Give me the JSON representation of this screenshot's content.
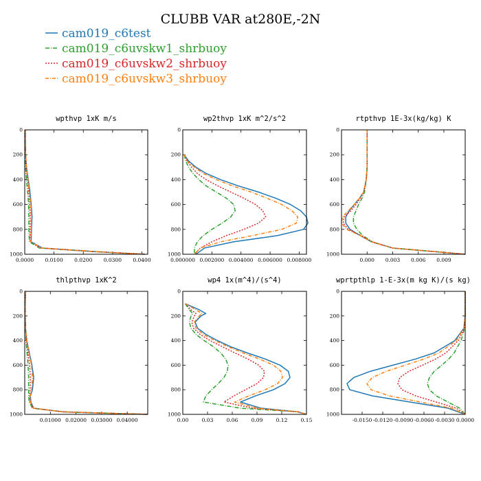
{
  "figure": {
    "title": "CLUBB VAR at280E,-2N",
    "legend": [
      {
        "label": "cam019_c6test",
        "color": "#1f77b4"
      },
      {
        "label": "cam019_c6uvskw1_shrbuoy",
        "color": "#2ca02c"
      },
      {
        "label": "cam019_c6uvskw2_shrbuoy",
        "color": "#d62728"
      },
      {
        "label": "cam019_c6uvskw3_shrbuoy",
        "color": "#ff7f0e"
      }
    ]
  },
  "chart_data": [
    {
      "type": "line",
      "title": "wpthvp  1xK m/s",
      "xlim": [
        0,
        0.042
      ],
      "ylim": [
        1000,
        0
      ],
      "xticks": [
        0,
        0.01,
        0.02,
        0.03,
        0.04
      ],
      "xtick_labels": [
        "0.0000",
        "0.0100",
        "0.0200",
        "0.0300",
        "0.0400"
      ],
      "yticks": [
        0,
        200,
        400,
        600,
        800,
        1000
      ],
      "ytick_labels": [
        "0",
        "200",
        "400",
        "600",
        "800",
        "1000"
      ],
      "y": [
        0,
        100,
        200,
        300,
        400,
        500,
        600,
        700,
        800,
        900,
        950,
        980,
        1000
      ],
      "series": [
        {
          "name": "cam019_c6test",
          "x": [
            0.0002,
            0.0002,
            0.0003,
            0.0006,
            0.0012,
            0.0018,
            0.0022,
            0.0025,
            0.0023,
            0.0022,
            0.006,
            0.025,
            0.041
          ]
        },
        {
          "name": "cam019_c6uvskw1_shrbuoy",
          "x": [
            0.0002,
            0.0002,
            0.0002,
            0.0003,
            0.0006,
            0.001,
            0.0013,
            0.0014,
            0.0014,
            0.0016,
            0.005,
            0.024,
            0.041
          ]
        },
        {
          "name": "cam019_c6uvskw2_shrbuoy",
          "x": [
            0.0002,
            0.0002,
            0.0003,
            0.0005,
            0.001,
            0.0014,
            0.0017,
            0.0019,
            0.0018,
            0.0019,
            0.0055,
            0.0245,
            0.041
          ]
        },
        {
          "name": "cam019_c6uvskw3_shrbuoy",
          "x": [
            0.0002,
            0.0002,
            0.0003,
            0.0006,
            0.0011,
            0.0016,
            0.0021,
            0.0023,
            0.0022,
            0.0021,
            0.0058,
            0.025,
            0.041
          ]
        }
      ]
    },
    {
      "type": "line",
      "title": "wp2thvp  1xK m^2/s^2",
      "xlim": [
        0,
        0.0085
      ],
      "ylim": [
        1000,
        0
      ],
      "xticks": [
        0,
        0.002,
        0.004,
        0.006,
        0.008
      ],
      "xtick_labels": [
        "0.000000",
        "0.002000",
        "0.004000",
        "0.006000",
        "0.008000"
      ],
      "yticks": [
        0,
        200,
        400,
        600,
        800,
        1000
      ],
      "ytick_labels": [
        "0",
        "200",
        "400",
        "600",
        "800",
        "1000"
      ],
      "y": [
        200,
        250,
        300,
        350,
        400,
        450,
        500,
        550,
        600,
        650,
        700,
        750,
        800,
        850,
        900,
        950,
        1000
      ],
      "series": [
        {
          "name": "cam019_c6test",
          "x": [
            0.0001,
            0.0004,
            0.0009,
            0.0016,
            0.0026,
            0.0038,
            0.0052,
            0.0064,
            0.0074,
            0.0081,
            0.0085,
            0.0086,
            0.0083,
            0.0065,
            0.0035,
            0.0015,
            0.0009
          ]
        },
        {
          "name": "cam019_c6uvskw1_shrbuoy",
          "x": [
            0.0001,
            0.0002,
            0.0004,
            0.0007,
            0.0011,
            0.0016,
            0.0023,
            0.003,
            0.0035,
            0.0036,
            0.0033,
            0.0027,
            0.002,
            0.0014,
            0.001,
            0.0008,
            0.0008
          ]
        },
        {
          "name": "cam019_c6uvskw2_shrbuoy",
          "x": [
            0.0001,
            0.0003,
            0.0006,
            0.001,
            0.0016,
            0.0024,
            0.0033,
            0.0042,
            0.005,
            0.0055,
            0.0057,
            0.0052,
            0.0042,
            0.003,
            0.002,
            0.0012,
            0.0008
          ]
        },
        {
          "name": "cam019_c6uvskw3_shrbuoy",
          "x": [
            0.0001,
            0.0003,
            0.0008,
            0.0014,
            0.0023,
            0.0034,
            0.0047,
            0.0058,
            0.0068,
            0.0075,
            0.0079,
            0.0078,
            0.0068,
            0.0048,
            0.0026,
            0.0012,
            0.0008
          ]
        }
      ]
    },
    {
      "type": "line",
      "title": "rtpthvp  1E-3x(kg/kg) K",
      "xlim": [
        -0.003,
        0.0115
      ],
      "ylim": [
        1000,
        0
      ],
      "xticks": [
        0,
        0.003,
        0.006,
        0.009
      ],
      "xtick_labels": [
        "0.000",
        "0.003",
        "0.006",
        "0.009"
      ],
      "yticks": [
        0,
        200,
        400,
        600,
        800,
        1000
      ],
      "ytick_labels": [
        "0",
        "200",
        "400",
        "600",
        "800",
        "1000"
      ],
      "y": [
        0,
        200,
        300,
        400,
        500,
        550,
        600,
        650,
        700,
        750,
        800,
        850,
        900,
        950,
        1000
      ],
      "series": [
        {
          "name": "cam019_c6test",
          "x": [
            0,
            0,
            0,
            -0.0001,
            -0.0004,
            -0.0009,
            -0.0015,
            -0.0021,
            -0.0025,
            -0.0025,
            -0.002,
            -0.0008,
            0.0005,
            0.003,
            0.0115
          ]
        },
        {
          "name": "cam019_c6uvskw1_shrbuoy",
          "x": [
            0,
            0,
            0,
            -0.0001,
            -0.0003,
            -0.0006,
            -0.001,
            -0.0013,
            -0.0016,
            -0.0016,
            -0.0012,
            -0.0005,
            0.0006,
            0.003,
            0.0115
          ]
        },
        {
          "name": "cam019_c6uvskw2_shrbuoy",
          "x": [
            0,
            0,
            0,
            -0.0001,
            -0.0004,
            -0.0008,
            -0.0013,
            -0.0019,
            -0.0027,
            -0.0028,
            -0.0022,
            -0.0007,
            0.0006,
            0.003,
            0.0115
          ]
        },
        {
          "name": "cam019_c6uvskw3_shrbuoy",
          "x": [
            0,
            0,
            0,
            -0.0001,
            -0.0004,
            -0.0009,
            -0.0015,
            -0.0022,
            -0.0029,
            -0.003,
            -0.0024,
            -0.0008,
            0.0005,
            0.003,
            0.0115
          ]
        }
      ]
    },
    {
      "type": "line",
      "title": "thlpthvp  1xK^2",
      "xlim": [
        0,
        0.048
      ],
      "ylim": [
        1000,
        0
      ],
      "xticks": [
        0.01,
        0.02,
        0.03,
        0.04
      ],
      "xtick_labels": [
        "0.01000",
        "0.02000",
        "0.03000",
        "0.04000"
      ],
      "yticks": [
        0,
        200,
        400,
        600,
        800,
        1000
      ],
      "ytick_labels": [
        "0",
        "200",
        "400",
        "600",
        "800",
        "1000"
      ],
      "y": [
        0,
        100,
        200,
        300,
        400,
        500,
        600,
        700,
        800,
        850,
        900,
        950,
        980,
        1000
      ],
      "series": [
        {
          "name": "cam019_c6test",
          "x": [
            0.0003,
            0.0002,
            0.0002,
            0.0003,
            0.0008,
            0.0018,
            0.0028,
            0.0035,
            0.003,
            0.0022,
            0.0024,
            0.0035,
            0.015,
            0.048
          ]
        },
        {
          "name": "cam019_c6uvskw1_shrbuoy",
          "x": [
            0.0003,
            0.0002,
            0.0002,
            0.0003,
            0.0005,
            0.0009,
            0.0013,
            0.0015,
            0.0015,
            0.0015,
            0.0018,
            0.003,
            0.015,
            0.048
          ]
        },
        {
          "name": "cam019_c6uvskw2_shrbuoy",
          "x": [
            0.0003,
            0.0002,
            0.0002,
            0.0003,
            0.0007,
            0.0013,
            0.0019,
            0.0022,
            0.0021,
            0.0019,
            0.0021,
            0.0032,
            0.015,
            0.048
          ]
        },
        {
          "name": "cam019_c6uvskw3_shrbuoy",
          "x": [
            0.0003,
            0.0002,
            0.0002,
            0.0003,
            0.0008,
            0.0017,
            0.0026,
            0.003,
            0.0027,
            0.0021,
            0.0023,
            0.0034,
            0.015,
            0.048
          ]
        }
      ]
    },
    {
      "type": "line",
      "title": "wp4  1x(m^4)/(s^4)",
      "xlim": [
        0,
        0.15
      ],
      "ylim": [
        1000,
        0
      ],
      "xticks": [
        0,
        0.03,
        0.06,
        0.09,
        0.12,
        0.15
      ],
      "xtick_labels": [
        "0.00",
        "0.03",
        "0.06",
        "0.09",
        "0.12",
        "0.15"
      ],
      "yticks": [
        0,
        200,
        400,
        600,
        800,
        1000
      ],
      "ytick_labels": [
        "0",
        "200",
        "400",
        "600",
        "800",
        "1000"
      ],
      "y": [
        100,
        150,
        180,
        200,
        250,
        300,
        350,
        400,
        450,
        500,
        550,
        600,
        650,
        700,
        750,
        800,
        850,
        900,
        950,
        980,
        1000
      ],
      "series": [
        {
          "name": "cam019_c6test",
          "x": [
            0.003,
            0.02,
            0.028,
            0.022,
            0.015,
            0.018,
            0.028,
            0.042,
            0.058,
            0.078,
            0.1,
            0.118,
            0.128,
            0.13,
            0.124,
            0.11,
            0.088,
            0.07,
            0.095,
            0.14,
            0.15
          ]
        },
        {
          "name": "cam019_c6uvskw1_shrbuoy",
          "x": [
            0.003,
            0.008,
            0.012,
            0.01,
            0.008,
            0.01,
            0.016,
            0.026,
            0.037,
            0.046,
            0.052,
            0.055,
            0.054,
            0.05,
            0.043,
            0.035,
            0.028,
            0.025,
            0.07,
            0.14,
            0.15
          ]
        },
        {
          "name": "cam019_c6uvskw2_shrbuoy",
          "x": [
            0.003,
            0.01,
            0.016,
            0.014,
            0.011,
            0.013,
            0.021,
            0.033,
            0.048,
            0.063,
            0.079,
            0.092,
            0.099,
            0.098,
            0.09,
            0.076,
            0.062,
            0.05,
            0.085,
            0.14,
            0.15
          ]
        },
        {
          "name": "cam019_c6uvskw3_shrbuoy",
          "x": [
            0.003,
            0.016,
            0.023,
            0.02,
            0.014,
            0.016,
            0.025,
            0.039,
            0.055,
            0.073,
            0.093,
            0.11,
            0.119,
            0.121,
            0.115,
            0.1,
            0.08,
            0.063,
            0.09,
            0.14,
            0.15
          ]
        }
      ]
    },
    {
      "type": "line",
      "title": "wprtpthlp  1-E-3x(m kg K)/(s kg)",
      "xlim": [
        -0.018,
        0
      ],
      "ylim": [
        1000,
        0
      ],
      "xticks": [
        -0.015,
        -0.012,
        -0.009,
        -0.006,
        -0.003,
        0
      ],
      "xtick_labels": [
        "-0.0150",
        "-0.0120",
        "-0.0090",
        "-0.0060",
        "-0.0030",
        "0.0000"
      ],
      "yticks": [
        0,
        200,
        400,
        600,
        800,
        1000
      ],
      "ytick_labels": [
        "0",
        "200",
        "400",
        "600",
        "800",
        "1000"
      ],
      "y": [
        0,
        200,
        300,
        400,
        500,
        550,
        600,
        650,
        700,
        750,
        800,
        850,
        900,
        950,
        1000
      ],
      "series": [
        {
          "name": "cam019_c6test",
          "x": [
            0,
            0,
            -0.0002,
            -0.0015,
            -0.0045,
            -0.0072,
            -0.0105,
            -0.0138,
            -0.0162,
            -0.0172,
            -0.0168,
            -0.0135,
            -0.008,
            -0.0025,
            0
          ]
        },
        {
          "name": "cam019_c6uvskw1_shrbuoy",
          "x": [
            0,
            0,
            -0.0001,
            -0.0006,
            -0.0016,
            -0.0024,
            -0.0034,
            -0.0045,
            -0.0052,
            -0.0055,
            -0.0052,
            -0.0042,
            -0.0025,
            -0.0008,
            0
          ]
        },
        {
          "name": "cam019_c6uvskw2_shrbuoy",
          "x": [
            0,
            0,
            -0.0001,
            -0.001,
            -0.0028,
            -0.0043,
            -0.0062,
            -0.0082,
            -0.0095,
            -0.0098,
            -0.0092,
            -0.0072,
            -0.0042,
            -0.0013,
            0
          ]
        },
        {
          "name": "cam019_c6uvskw3_shrbuoy",
          "x": [
            0,
            0,
            -0.0002,
            -0.0013,
            -0.0038,
            -0.006,
            -0.0087,
            -0.0115,
            -0.0135,
            -0.0143,
            -0.0137,
            -0.011,
            -0.0065,
            -0.002,
            0
          ]
        }
      ]
    }
  ]
}
